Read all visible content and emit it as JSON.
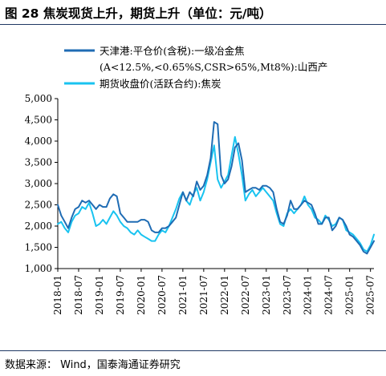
{
  "header": {
    "title": "图 28  焦炭现货上升，期货上升（单位：元/吨）"
  },
  "footer": {
    "source": "数据来源：  Wind，国泰海通证券研究"
  },
  "colors": {
    "spot": "#1f6cb4",
    "futures": "#19c3f0",
    "rule": "#1f3864"
  },
  "chart_data": {
    "type": "line",
    "title": "",
    "xlabel": "",
    "ylabel": "",
    "ylim": [
      1000,
      5000
    ],
    "yticks": [
      "1,000",
      "1,500",
      "2,000",
      "2,500",
      "3,000",
      "3,500",
      "4,000",
      "4,500",
      "5,000"
    ],
    "xrange": [
      "2018-01",
      "2025-08"
    ],
    "xticks": [
      "2018-01",
      "2018-07",
      "2019-01",
      "2019-07",
      "2020-01",
      "2020-07",
      "2021-01",
      "2021-07",
      "2022-01",
      "2022-07",
      "2023-01",
      "2023-07",
      "2024-01",
      "2024-07",
      "2025-01",
      "2025-07"
    ],
    "grid": false,
    "legend": "top",
    "series": [
      {
        "name_lines": [
          "天津港:平仓价(含税):一级冶金焦",
          "(A<12.5%,<0.65%S,CSR>65%,Mt8%):山西产"
        ],
        "color_key": "spot",
        "x": [
          "2018-01",
          "2018-02",
          "2018-03",
          "2018-04",
          "2018-05",
          "2018-06",
          "2018-07",
          "2018-08",
          "2018-09",
          "2018-10",
          "2018-11",
          "2018-12",
          "2019-01",
          "2019-02",
          "2019-03",
          "2019-04",
          "2019-05",
          "2019-06",
          "2019-07",
          "2019-08",
          "2019-09",
          "2019-10",
          "2019-11",
          "2019-12",
          "2020-01",
          "2020-02",
          "2020-03",
          "2020-04",
          "2020-05",
          "2020-06",
          "2020-07",
          "2020-08",
          "2020-09",
          "2020-10",
          "2020-11",
          "2020-12",
          "2021-01",
          "2021-02",
          "2021-03",
          "2021-04",
          "2021-05",
          "2021-06",
          "2021-07",
          "2021-08",
          "2021-09",
          "2021-10",
          "2021-11",
          "2021-12",
          "2022-01",
          "2022-02",
          "2022-03",
          "2022-04",
          "2022-05",
          "2022-06",
          "2022-07",
          "2022-08",
          "2022-09",
          "2022-10",
          "2022-11",
          "2022-12",
          "2023-01",
          "2023-02",
          "2023-03",
          "2023-04",
          "2023-05",
          "2023-06",
          "2023-07",
          "2023-08",
          "2023-09",
          "2023-10",
          "2023-11",
          "2023-12",
          "2024-01",
          "2024-02",
          "2024-03",
          "2024-04",
          "2024-05",
          "2024-06",
          "2024-07",
          "2024-08",
          "2024-09",
          "2024-10",
          "2024-11",
          "2024-12",
          "2025-01",
          "2025-02",
          "2025-03",
          "2025-04",
          "2025-05",
          "2025-06",
          "2025-07",
          "2025-08"
        ],
        "values": [
          2500,
          2250,
          2100,
          1950,
          2200,
          2400,
          2450,
          2600,
          2550,
          2600,
          2500,
          2400,
          2500,
          2450,
          2450,
          2650,
          2750,
          2700,
          2300,
          2200,
          2100,
          2100,
          2100,
          2100,
          2150,
          2150,
          2100,
          1900,
          1850,
          1850,
          1950,
          1950,
          2000,
          2100,
          2200,
          2500,
          2800,
          2600,
          2800,
          2700,
          3050,
          2850,
          2950,
          3200,
          3600,
          4450,
          4400,
          3200,
          3000,
          3100,
          3400,
          3850,
          3950,
          3550,
          2800,
          2850,
          2900,
          2900,
          2850,
          2950,
          2950,
          2900,
          2800,
          2400,
          2100,
          2050,
          2250,
          2600,
          2400,
          2400,
          2500,
          2600,
          2550,
          2500,
          2300,
          2050,
          2050,
          2200,
          2200,
          1900,
          2000,
          2200,
          2150,
          2000,
          1800,
          1750,
          1650,
          1550,
          1400,
          1350,
          1500,
          1650
        ]
      },
      {
        "name": "期货收盘价(活跃合约):焦炭",
        "color_key": "futures",
        "x": [
          "2018-01",
          "2018-02",
          "2018-03",
          "2018-04",
          "2018-05",
          "2018-06",
          "2018-07",
          "2018-08",
          "2018-09",
          "2018-10",
          "2018-11",
          "2018-12",
          "2019-01",
          "2019-02",
          "2019-03",
          "2019-04",
          "2019-05",
          "2019-06",
          "2019-07",
          "2019-08",
          "2019-09",
          "2019-10",
          "2019-11",
          "2019-12",
          "2020-01",
          "2020-02",
          "2020-03",
          "2020-04",
          "2020-05",
          "2020-06",
          "2020-07",
          "2020-08",
          "2020-09",
          "2020-10",
          "2020-11",
          "2020-12",
          "2021-01",
          "2021-02",
          "2021-03",
          "2021-04",
          "2021-05",
          "2021-06",
          "2021-07",
          "2021-08",
          "2021-09",
          "2021-10",
          "2021-11",
          "2021-12",
          "2022-01",
          "2022-02",
          "2022-03",
          "2022-04",
          "2022-05",
          "2022-06",
          "2022-07",
          "2022-08",
          "2022-09",
          "2022-10",
          "2022-11",
          "2022-12",
          "2023-01",
          "2023-02",
          "2023-03",
          "2023-04",
          "2023-05",
          "2023-06",
          "2023-07",
          "2023-08",
          "2023-09",
          "2023-10",
          "2023-11",
          "2023-12",
          "2024-01",
          "2024-02",
          "2024-03",
          "2024-04",
          "2024-05",
          "2024-06",
          "2024-07",
          "2024-08",
          "2024-09",
          "2024-10",
          "2024-11",
          "2024-12",
          "2025-01",
          "2025-02",
          "2025-03",
          "2025-04",
          "2025-05",
          "2025-06",
          "2025-07",
          "2025-08"
        ],
        "values": [
          2050,
          2100,
          1950,
          1850,
          2100,
          2250,
          2300,
          2450,
          2400,
          2550,
          2300,
          2000,
          2050,
          2150,
          2050,
          2200,
          2350,
          2250,
          2100,
          2000,
          1950,
          1850,
          1800,
          1900,
          1800,
          1750,
          1700,
          1650,
          1650,
          1800,
          1900,
          1850,
          2000,
          2200,
          2400,
          2650,
          2800,
          2600,
          2500,
          2750,
          2900,
          2600,
          2800,
          3100,
          3500,
          3900,
          3100,
          2900,
          3050,
          3200,
          3650,
          4100,
          3700,
          3200,
          2600,
          2750,
          2850,
          2700,
          2800,
          2900,
          2800,
          2700,
          2600,
          2300,
          2050,
          2000,
          2300,
          2400,
          2300,
          2400,
          2500,
          2700,
          2500,
          2400,
          2200,
          2150,
          2050,
          2250,
          2150,
          2000,
          2050,
          2200,
          2150,
          1900,
          1850,
          1800,
          1700,
          1600,
          1450,
          1400,
          1550,
          1800
        ]
      }
    ]
  }
}
